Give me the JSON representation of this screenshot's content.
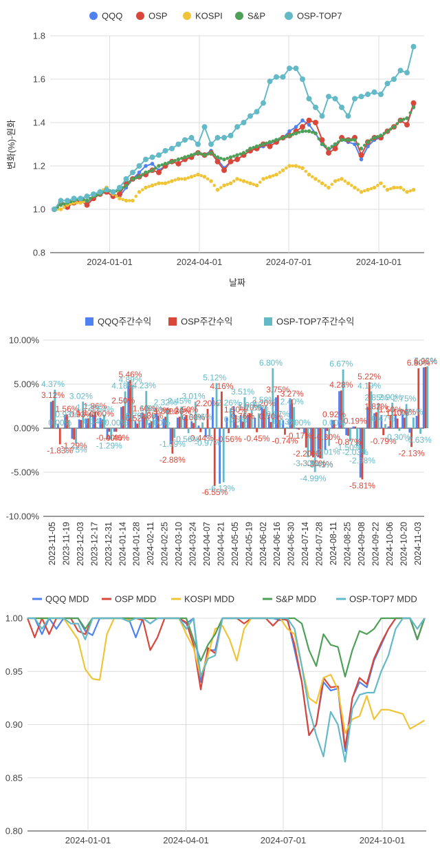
{
  "charts": {
    "cumulative": {
      "legend": [
        {
          "name": "QQQ",
          "color": "#4f81f0"
        },
        {
          "name": "OSP",
          "color": "#d9473b"
        },
        {
          "name": "KOSPI",
          "color": "#efc437"
        },
        {
          "name": "S&P",
          "color": "#4e9f57"
        },
        {
          "name": "OSP-TOP7",
          "color": "#64b9c7"
        }
      ],
      "y_ticks": [
        "0.8",
        "1.0",
        "1.2",
        "1.4",
        "1.6",
        "1.8"
      ],
      "x_ticks": [
        "2024-01-01",
        "2024-04-01",
        "2024-07-01",
        "2024-10-01"
      ],
      "ylabel": "변화(%)-원화",
      "xlabel": "날짜"
    },
    "weekly": {
      "legend": [
        {
          "name": "QQQ주간수익",
          "color": "#4f81f0"
        },
        {
          "name": "OSP주간수익",
          "color": "#d9473b"
        },
        {
          "name": "OSP-TOP7주간수익",
          "color": "#64b9c7"
        }
      ],
      "y_ticks": [
        "-10.00%",
        "-5.00%",
        "0.00%",
        "5.00%",
        "10.00%"
      ],
      "x_ticks": [
        "2023-11-05",
        "2023-11-19",
        "2023-12-03",
        "2023-12-17",
        "2023-12-31",
        "2024-01-14",
        "2024-01-28",
        "2024-02-11",
        "2024-02-25",
        "2024-03-10",
        "2024-03-24",
        "2024-04-07",
        "2024-04-21",
        "2024-05-05",
        "2024-05-19",
        "2024-06-02",
        "2024-06-16",
        "2024-06-30",
        "2024-07-14",
        "2024-07-28",
        "2024-08-11",
        "2024-08-25",
        "2024-09-08",
        "2024-09-22",
        "2024-10-06",
        "2024-10-20",
        "2024-11-03"
      ]
    },
    "mdd": {
      "legend": [
        {
          "name": "QQQ MDD",
          "color": "#4f81f0"
        },
        {
          "name": "OSP MDD",
          "color": "#d9473b"
        },
        {
          "name": "KOSPI MDD",
          "color": "#efc437"
        },
        {
          "name": "S&P MDD",
          "color": "#4e9f57"
        },
        {
          "name": "OSP-TOP7 MDD",
          "color": "#64b9c7"
        }
      ],
      "y_ticks": [
        "0.80",
        "0.85",
        "0.90",
        "0.95",
        "1.00"
      ],
      "x_ticks": [
        "2024-01-01",
        "2024-04-01",
        "2024-07-01",
        "2024-10-01"
      ]
    }
  },
  "chart_data": [
    {
      "type": "line",
      "xlabel": "날짜",
      "ylabel": "변화(%)-원화",
      "ylim": [
        0.8,
        1.8
      ],
      "x_unit": "weeks from 2023-11-05",
      "x": [
        0,
        1,
        2,
        3,
        4,
        5,
        6,
        7,
        8,
        9,
        10,
        11,
        12,
        13,
        14,
        15,
        16,
        17,
        18,
        19,
        20,
        21,
        22,
        23,
        24,
        25,
        26,
        27,
        28,
        29,
        30,
        31,
        32,
        33,
        34,
        35,
        36,
        37,
        38,
        39,
        40,
        41,
        42,
        43,
        44,
        45,
        46,
        47,
        48,
        49,
        50,
        51,
        52,
        53,
        54,
        55
      ],
      "series": [
        {
          "name": "QQQ",
          "values": [
            1.0,
            1.03,
            1.02,
            1.04,
            1.05,
            1.03,
            1.06,
            1.08,
            1.1,
            1.07,
            1.06,
            1.1,
            1.14,
            1.17,
            1.2,
            1.21,
            1.18,
            1.2,
            1.22,
            1.21,
            1.23,
            1.24,
            1.26,
            1.25,
            1.27,
            1.23,
            1.19,
            1.22,
            1.23,
            1.25,
            1.27,
            1.28,
            1.29,
            1.3,
            1.32,
            1.33,
            1.36,
            1.38,
            1.41,
            1.39,
            1.35,
            1.3,
            1.27,
            1.3,
            1.32,
            1.31,
            1.3,
            1.23,
            1.29,
            1.32,
            1.33,
            1.36,
            1.38,
            1.41,
            1.39,
            1.48
          ]
        },
        {
          "name": "OSP",
          "values": [
            1.0,
            1.03,
            1.01,
            1.03,
            1.04,
            1.02,
            1.05,
            1.07,
            1.08,
            1.06,
            1.07,
            1.12,
            1.14,
            1.15,
            1.16,
            1.18,
            1.17,
            1.2,
            1.22,
            1.21,
            1.23,
            1.24,
            1.26,
            1.25,
            1.26,
            1.22,
            1.18,
            1.22,
            1.23,
            1.25,
            1.27,
            1.28,
            1.3,
            1.29,
            1.31,
            1.33,
            1.34,
            1.36,
            1.38,
            1.41,
            1.4,
            1.32,
            1.26,
            1.28,
            1.33,
            1.32,
            1.33,
            1.25,
            1.31,
            1.33,
            1.33,
            1.36,
            1.38,
            1.41,
            1.39,
            1.49
          ]
        },
        {
          "name": "KOSPI",
          "values": [
            1.0,
            1.0,
            1.02,
            1.03,
            1.03,
            1.04,
            1.06,
            1.08,
            1.1,
            1.07,
            1.05,
            1.04,
            1.04,
            1.08,
            1.1,
            1.11,
            1.12,
            1.12,
            1.13,
            1.14,
            1.14,
            1.15,
            1.16,
            1.15,
            1.13,
            1.09,
            1.11,
            1.12,
            1.14,
            1.13,
            1.12,
            1.11,
            1.14,
            1.15,
            1.16,
            1.18,
            1.2,
            1.2,
            1.19,
            1.16,
            1.14,
            1.12,
            1.1,
            1.13,
            1.14,
            1.12,
            1.1,
            1.08,
            1.09,
            1.1,
            1.12,
            1.09,
            1.1,
            1.1,
            1.08,
            1.09
          ]
        },
        {
          "name": "S&P",
          "values": [
            1.0,
            1.02,
            1.03,
            1.04,
            1.05,
            1.04,
            1.06,
            1.07,
            1.09,
            1.08,
            1.09,
            1.11,
            1.14,
            1.15,
            1.17,
            1.18,
            1.2,
            1.21,
            1.22,
            1.23,
            1.24,
            1.25,
            1.26,
            1.25,
            1.26,
            1.24,
            1.23,
            1.24,
            1.25,
            1.26,
            1.28,
            1.29,
            1.3,
            1.31,
            1.32,
            1.33,
            1.34,
            1.35,
            1.36,
            1.36,
            1.35,
            1.3,
            1.28,
            1.3,
            1.32,
            1.32,
            1.32,
            1.28,
            1.31,
            1.33,
            1.34,
            1.36,
            1.38,
            1.41,
            1.42,
            1.47
          ]
        },
        {
          "name": "OSP-TOP7",
          "values": [
            1.0,
            1.04,
            1.04,
            1.05,
            1.05,
            1.06,
            1.07,
            1.08,
            1.09,
            1.08,
            1.1,
            1.14,
            1.17,
            1.2,
            1.23,
            1.24,
            1.25,
            1.27,
            1.28,
            1.3,
            1.32,
            1.33,
            1.3,
            1.38,
            1.3,
            1.33,
            1.33,
            1.34,
            1.38,
            1.4,
            1.43,
            1.45,
            1.49,
            1.59,
            1.61,
            1.61,
            1.65,
            1.65,
            1.6,
            1.51,
            1.47,
            1.43,
            1.52,
            1.51,
            1.47,
            1.43,
            1.51,
            1.52,
            1.53,
            1.54,
            1.53,
            1.58,
            1.6,
            1.64,
            1.63,
            1.75
          ]
        }
      ]
    },
    {
      "type": "bar",
      "ylim": [
        -10,
        10
      ],
      "categories": [
        "2023-11-05",
        "2023-11-12",
        "2023-11-19",
        "2023-11-26",
        "2023-12-03",
        "2023-12-10",
        "2023-12-17",
        "2023-12-24",
        "2023-12-31",
        "2024-01-07",
        "2024-01-14",
        "2024-01-21",
        "2024-01-28",
        "2024-02-04",
        "2024-02-11",
        "2024-02-18",
        "2024-02-25",
        "2024-03-03",
        "2024-03-10",
        "2024-03-17",
        "2024-03-24",
        "2024-03-31",
        "2024-04-07",
        "2024-04-14",
        "2024-04-21",
        "2024-04-28",
        "2024-05-05",
        "2024-05-12",
        "2024-05-19",
        "2024-05-26",
        "2024-06-02",
        "2024-06-09",
        "2024-06-16",
        "2024-06-23",
        "2024-06-30",
        "2024-07-07",
        "2024-07-14",
        "2024-07-21",
        "2024-07-28",
        "2024-08-04",
        "2024-08-11",
        "2024-08-18",
        "2024-08-25",
        "2024-09-01",
        "2024-09-08",
        "2024-09-15",
        "2024-09-22",
        "2024-09-29",
        "2024-10-06",
        "2024-10-13",
        "2024-10-20",
        "2024-10-27",
        "2024-11-03",
        "2024-11-10"
      ],
      "series": [
        {
          "name": "QQQ주간수익",
          "values": [
            3.0,
            0.5,
            1.5,
            -1.2,
            1.0,
            1.1,
            1.5,
            1.2,
            -1.2,
            -0.4,
            2.4,
            5.3,
            0.8,
            1.8,
            0.6,
            1.6,
            1.1,
            -1.8,
            1.2,
            1.3,
            0.8,
            0.3,
            -1.0,
            3.5,
            -6.3,
            1.2,
            2.5,
            1.5,
            1.5,
            1.2,
            2.4,
            1.5,
            3.5,
            0.9,
            3.4,
            -0.1,
            -0.6,
            -3.1,
            -3.3,
            -2.5,
            0.9,
            4.2,
            -0.8,
            0.2,
            -5.6,
            2.4,
            1.7,
            1.5,
            0.2,
            1.5,
            1.6,
            -0.5,
            1.4,
            6.9
          ]
        },
        {
          "name": "OSP주간수익",
          "values": [
            3.12,
            -1.83,
            1.56,
            -1.29,
            0.93,
            1.12,
            1.86,
            1.0,
            -0.4,
            -0.4,
            2.5,
            5.46,
            0.52,
            1.6,
            0.8,
            1.4,
            1.3,
            -2.88,
            1.3,
            1.5,
            0.6,
            -0.44,
            2.2,
            -6.55,
            4.16,
            -0.56,
            1.5,
            0.76,
            1.7,
            -0.45,
            2.2,
            0.7,
            3.75,
            -0.74,
            3.27,
            -0.17,
            -2.2,
            -3.3,
            -3.41,
            -0.3,
            0.92,
            4.28,
            -0.87,
            0.19,
            -5.81,
            5.22,
            1.82,
            -0.79,
            1.5,
            1.1,
            1.2,
            -2.13,
            6.8,
            6.95
          ]
        },
        {
          "name": "OSP-TOP7주간수익",
          "values": [
            4.37,
            0.0,
            0.93,
            -1.75,
            3.02,
            1.72,
            0.14,
            1.54,
            -1.29,
            0.0,
            4.18,
            4.89,
            0.79,
            4.23,
            1.59,
            0.0,
            2.32,
            -1.09,
            2.45,
            -0.56,
            3.01,
            0.66,
            -0.97,
            5.12,
            -6.13,
            2.26,
            0.35,
            3.51,
            2.0,
            1.69,
            2.58,
            6.8,
            0.97,
            0.13,
            2.4,
            0.0,
            -3.3,
            -4.99,
            -3.45,
            -2.01,
            0.0,
            6.67,
            -1.5,
            -2.03,
            -2.98,
            4.19,
            2.85,
            0.47,
            2.9,
            -0.3,
            2.75,
            1.21,
            -0.63,
            7.03
          ]
        }
      ]
    },
    {
      "type": "line",
      "ylim": [
        0.8,
        1.0
      ],
      "x_unit": "weeks from 2023-11-05",
      "x": [
        0,
        1,
        2,
        3,
        4,
        5,
        6,
        7,
        8,
        9,
        10,
        11,
        12,
        13,
        14,
        15,
        16,
        17,
        18,
        19,
        20,
        21,
        22,
        23,
        24,
        25,
        26,
        27,
        28,
        29,
        30,
        31,
        32,
        33,
        34,
        35,
        36,
        37,
        38,
        39,
        40,
        41,
        42,
        43,
        44,
        45,
        46,
        47,
        48,
        49,
        50,
        51,
        52,
        53,
        54,
        55
      ],
      "series": [
        {
          "name": "QQQ MDD",
          "values": [
            1.0,
            1.0,
            0.985,
            1.0,
            0.99,
            1.0,
            1.0,
            1.0,
            0.988,
            0.984,
            1.0,
            1.0,
            1.0,
            1.0,
            1.0,
            0.982,
            1.0,
            0.995,
            1.0,
            1.0,
            1.0,
            1.0,
            0.995,
            1.0,
            0.94,
            0.97,
            0.97,
            1.0,
            1.0,
            1.0,
            1.0,
            1.0,
            1.0,
            1.0,
            1.0,
            0.998,
            1.0,
            0.97,
            0.94,
            0.89,
            0.9,
            0.94,
            0.932,
            0.934,
            0.875,
            0.925,
            0.94,
            0.935,
            0.96,
            0.975,
            0.99,
            1.0,
            1.0,
            1.0,
            0.98,
            1.0
          ]
        },
        {
          "name": "OSP MDD",
          "values": [
            1.0,
            0.982,
            1.0,
            0.985,
            1.0,
            1.0,
            1.0,
            0.988,
            0.985,
            1.0,
            1.0,
            1.0,
            1.0,
            1.0,
            1.0,
            1.0,
            0.998,
            0.97,
            0.982,
            1.0,
            1.0,
            1.0,
            0.996,
            0.975,
            0.933,
            0.972,
            0.967,
            1.0,
            1.0,
            1.0,
            0.995,
            1.0,
            1.0,
            1.0,
            0.993,
            1.0,
            0.998,
            0.975,
            0.94,
            0.89,
            0.9,
            0.944,
            0.935,
            0.936,
            0.878,
            0.925,
            0.944,
            0.938,
            0.962,
            0.977,
            0.99,
            1.0,
            1.0,
            1.0,
            0.98,
            1.0
          ]
        },
        {
          "name": "KOSPI MDD",
          "values": [
            1.0,
            1.0,
            1.0,
            1.0,
            1.0,
            1.0,
            0.99,
            0.98,
            0.952,
            0.943,
            0.942,
            0.985,
            1.0,
            1.0,
            0.998,
            1.0,
            1.0,
            1.0,
            1.0,
            1.0,
            1.0,
            1.0,
            0.985,
            0.972,
            0.945,
            0.965,
            0.99,
            0.993,
            0.98,
            0.96,
            0.99,
            1.0,
            1.0,
            1.0,
            1.0,
            1.0,
            0.99,
            0.985,
            0.955,
            0.925,
            0.92,
            0.944,
            0.947,
            0.933,
            0.892,
            0.905,
            0.908,
            0.927,
            0.905,
            0.914,
            0.914,
            0.912,
            0.91,
            0.896,
            0.9,
            0.904
          ]
        },
        {
          "name": "S&P MDD",
          "values": [
            1.0,
            1.0,
            1.0,
            1.0,
            1.0,
            1.0,
            1.0,
            1.0,
            0.99,
            1.0,
            1.0,
            1.0,
            1.0,
            1.0,
            1.0,
            1.0,
            1.0,
            1.0,
            1.0,
            1.0,
            1.0,
            1.0,
            1.0,
            0.98,
            0.96,
            0.975,
            0.985,
            1.0,
            1.0,
            1.0,
            1.0,
            1.0,
            1.0,
            1.0,
            1.0,
            1.0,
            1.0,
            1.0,
            0.995,
            0.97,
            0.955,
            0.985,
            0.975,
            0.973,
            0.945,
            0.97,
            0.988,
            0.985,
            0.99,
            1.0,
            1.0,
            1.0,
            1.0,
            1.0,
            0.98,
            1.0
          ]
        },
        {
          "name": "OSP-TOP7 MDD",
          "values": [
            1.0,
            1.0,
            0.99,
            1.0,
            1.0,
            1.0,
            0.995,
            0.995,
            0.98,
            1.0,
            1.0,
            1.0,
            1.0,
            1.0,
            0.997,
            1.0,
            1.0,
            0.995,
            1.0,
            1.0,
            1.0,
            1.0,
            0.99,
            1.0,
            0.945,
            0.962,
            0.965,
            1.0,
            1.0,
            1.0,
            1.0,
            1.0,
            1.0,
            1.0,
            1.0,
            1.0,
            1.0,
            0.99,
            0.955,
            0.915,
            0.89,
            0.87,
            0.912,
            0.9,
            0.865,
            0.915,
            0.928,
            0.93,
            0.93,
            0.95,
            0.965,
            0.99,
            1.0,
            1.0,
            0.99,
            1.0
          ]
        }
      ]
    }
  ]
}
